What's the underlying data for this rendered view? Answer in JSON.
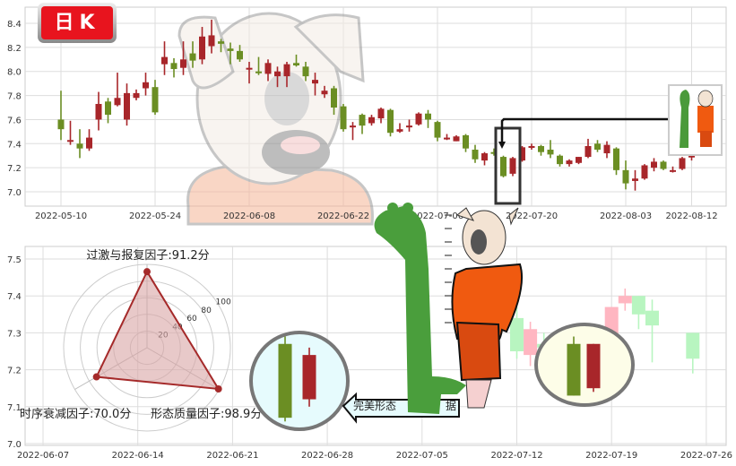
{
  "logo": {
    "text": "日K"
  },
  "colors": {
    "up": "#a8262a",
    "down": "#6b8e23",
    "faded_up": "#ffb6c1",
    "faded_down": "#b8f5c0",
    "highlight_left_bg": "#e6fbfd",
    "highlight_right_bg": "#fdfde8",
    "radar_fill": "#d9a5a5",
    "radar_stroke": "#a52a2a"
  },
  "chart_data": [
    {
      "type": "candlestick",
      "title": "",
      "ylim": [
        6.9,
        8.55
      ],
      "yticks": [
        7.0,
        7.2,
        7.4,
        7.6,
        7.8,
        8.0,
        8.2,
        8.4
      ],
      "xticks": [
        {
          "label": "2022-05-10",
          "index": 0
        },
        {
          "label": "2022-05-24",
          "index": 10
        },
        {
          "label": "2022-06-08",
          "index": 20
        },
        {
          "label": "2022-06-22",
          "index": 30
        },
        {
          "label": "2022-07-06",
          "index": 40
        },
        {
          "label": "2022-07-20",
          "index": 50
        },
        {
          "label": "2022-08-03",
          "index": 60
        },
        {
          "label": "2022-08-12",
          "index": 67
        }
      ],
      "grid": true,
      "highlight_indices": [
        47,
        48
      ],
      "ohlc": [
        [
          7.6,
          7.84,
          7.43,
          7.52
        ],
        [
          7.42,
          7.59,
          7.39,
          7.43
        ],
        [
          7.4,
          7.52,
          7.28,
          7.36
        ],
        [
          7.36,
          7.52,
          7.34,
          7.45
        ],
        [
          7.6,
          7.83,
          7.51,
          7.73
        ],
        [
          7.75,
          7.78,
          7.57,
          7.64
        ],
        [
          7.72,
          7.99,
          7.71,
          7.78
        ],
        [
          7.6,
          7.9,
          7.55,
          7.82
        ],
        [
          7.78,
          7.85,
          7.76,
          7.82
        ],
        [
          7.86,
          7.99,
          7.8,
          7.91
        ],
        [
          7.87,
          7.93,
          7.64,
          7.66
        ],
        [
          8.06,
          8.25,
          7.97,
          8.12
        ],
        [
          8.07,
          8.11,
          7.95,
          8.02
        ],
        [
          8.03,
          8.25,
          7.97,
          8.1
        ],
        [
          8.15,
          8.25,
          8.03,
          8.09
        ],
        [
          8.1,
          8.37,
          8.06,
          8.29
        ],
        [
          8.21,
          8.43,
          8.15,
          8.3
        ],
        [
          8.25,
          8.27,
          8.16,
          8.23
        ],
        [
          8.19,
          8.24,
          8.06,
          8.17
        ],
        [
          8.17,
          8.22,
          8.08,
          8.1
        ],
        [
          8.02,
          8.08,
          7.9,
          8.03
        ],
        [
          8.0,
          8.12,
          7.97,
          7.99
        ],
        [
          7.98,
          8.1,
          7.92,
          8.07
        ],
        [
          7.96,
          8.04,
          7.87,
          8.0
        ],
        [
          7.96,
          8.08,
          7.87,
          8.06
        ],
        [
          8.07,
          8.14,
          8.04,
          8.05
        ],
        [
          8.04,
          8.08,
          7.92,
          7.96
        ],
        [
          7.9,
          7.99,
          7.8,
          7.93
        ],
        [
          7.81,
          7.88,
          7.78,
          7.84
        ],
        [
          7.86,
          7.88,
          7.64,
          7.7
        ],
        [
          7.71,
          7.73,
          7.5,
          7.52
        ],
        [
          7.54,
          7.58,
          7.43,
          7.55
        ],
        [
          7.64,
          7.65,
          7.48,
          7.55
        ],
        [
          7.57,
          7.64,
          7.55,
          7.62
        ],
        [
          7.61,
          7.7,
          7.57,
          7.69
        ],
        [
          7.68,
          7.69,
          7.46,
          7.49
        ],
        [
          7.5,
          7.57,
          7.49,
          7.52
        ],
        [
          7.54,
          7.6,
          7.5,
          7.55
        ],
        [
          7.56,
          7.66,
          7.55,
          7.65
        ],
        [
          7.65,
          7.68,
          7.53,
          7.6
        ],
        [
          7.58,
          7.59,
          7.42,
          7.45
        ],
        [
          7.45,
          7.48,
          7.43,
          7.45
        ],
        [
          7.42,
          7.47,
          7.42,
          7.46
        ],
        [
          7.47,
          7.48,
          7.33,
          7.36
        ],
        [
          7.35,
          7.39,
          7.24,
          7.27
        ],
        [
          7.26,
          7.33,
          7.22,
          7.32
        ],
        [
          7.33,
          7.36,
          7.3,
          7.32
        ],
        [
          7.29,
          7.3,
          7.12,
          7.13
        ],
        [
          7.15,
          7.29,
          7.13,
          7.28
        ],
        [
          7.26,
          7.38,
          7.25,
          7.37
        ],
        [
          7.37,
          7.4,
          7.35,
          7.38
        ],
        [
          7.38,
          7.39,
          7.3,
          7.33
        ],
        [
          7.35,
          7.43,
          7.28,
          7.31
        ],
        [
          7.3,
          7.31,
          7.21,
          7.23
        ],
        [
          7.23,
          7.27,
          7.21,
          7.26
        ],
        [
          7.24,
          7.29,
          7.23,
          7.29
        ],
        [
          7.29,
          7.44,
          7.28,
          7.38
        ],
        [
          7.4,
          7.43,
          7.33,
          7.35
        ],
        [
          7.32,
          7.42,
          7.28,
          7.39
        ],
        [
          7.36,
          7.37,
          7.14,
          7.18
        ],
        [
          7.18,
          7.26,
          7.02,
          7.07
        ],
        [
          7.09,
          7.18,
          7.01,
          7.11
        ],
        [
          7.11,
          7.23,
          7.1,
          7.22
        ],
        [
          7.2,
          7.28,
          7.17,
          7.25
        ],
        [
          7.25,
          7.26,
          7.18,
          7.19
        ],
        [
          7.18,
          7.21,
          7.16,
          7.18
        ],
        [
          7.19,
          7.29,
          7.18,
          7.28
        ],
        [
          7.29,
          7.31,
          7.26,
          7.3
        ]
      ]
    },
    {
      "type": "candlestick",
      "title": "",
      "ylim": [
        7.0,
        7.53
      ],
      "yticks": [
        7.0,
        7.1,
        7.2,
        7.3,
        7.4,
        7.5
      ],
      "xticks": [
        "2022-06-07",
        "2022-06-14",
        "2022-06-21",
        "2022-06-28",
        "2022-07-05",
        "2022-07-12",
        "2022-07-19",
        "2022-07-26"
      ],
      "grid": true,
      "faded_ohlc": [
        {
          "date": "2022-07-12",
          "o": 7.34,
          "h": 7.37,
          "l": 7.23,
          "c": 7.25
        },
        {
          "date": "2022-07-13",
          "o": 7.24,
          "h": 7.33,
          "l": 7.21,
          "c": 7.31
        },
        {
          "date": "2022-07-14",
          "o": 7.27,
          "h": 7.3,
          "l": 7.24,
          "c": 7.26
        },
        {
          "date": "2022-07-19",
          "o": 7.25,
          "h": 7.37,
          "l": 7.25,
          "c": 7.37
        },
        {
          "date": "2022-07-20",
          "o": 7.38,
          "h": 7.42,
          "l": 7.36,
          "c": 7.4
        },
        {
          "date": "2022-07-21",
          "o": 7.4,
          "h": 7.4,
          "l": 7.31,
          "c": 7.35
        },
        {
          "date": "2022-07-22",
          "o": 7.36,
          "h": 7.39,
          "l": 7.22,
          "c": 7.32
        },
        {
          "date": "2022-07-25",
          "o": 7.3,
          "h": 7.3,
          "l": 7.19,
          "c": 7.23
        }
      ],
      "highlight_ohlc": [
        {
          "date": "2022-07-15",
          "o": 7.27,
          "h": 7.29,
          "l": 7.13,
          "c": 7.13
        },
        {
          "date": "2022-07-18",
          "o": 7.15,
          "h": 7.27,
          "l": 7.14,
          "c": 7.27
        }
      ],
      "pattern_sample": [
        {
          "o": 7.27,
          "h": 7.29,
          "l": 7.06,
          "c": 7.07
        },
        {
          "o": 7.12,
          "h": 7.26,
          "l": 7.1,
          "c": 7.24
        }
      ],
      "pattern_label": "完美形态",
      "pattern_label_tail": "据"
    },
    {
      "type": "radar",
      "rings": [
        20,
        40,
        60,
        80,
        100
      ],
      "axes": [
        {
          "label": "过激与报复因子:91.2分",
          "value": 91.2
        },
        {
          "label": "形态质量因子:98.9分",
          "value": 98.9
        },
        {
          "label": "时序衰减因子:70.0分",
          "value": 70.0
        }
      ]
    }
  ],
  "illustrations": [
    "cartoon-dog-watermark",
    "giraffe-with-height-chart",
    "dog-in-orange-outfit",
    "thumbnail-giraffe-dog"
  ]
}
